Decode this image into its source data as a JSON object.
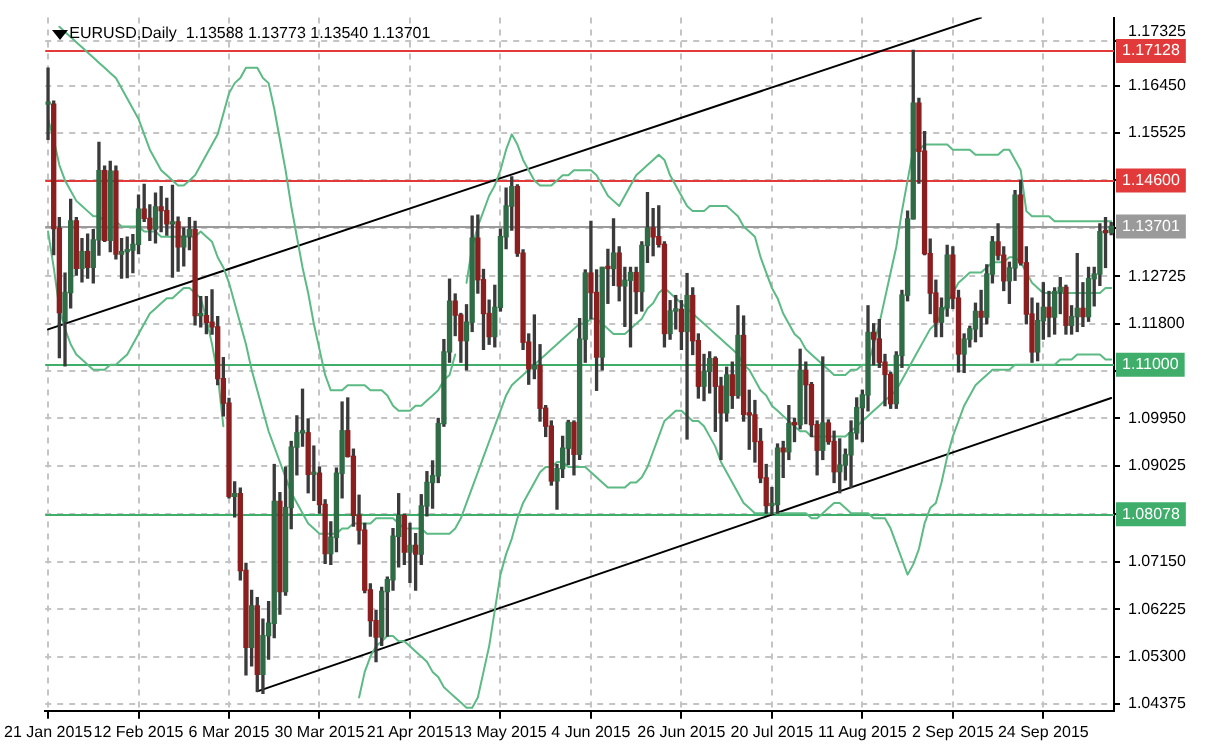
{
  "chart_data": {
    "type": "candlestick",
    "title": "EURUSD,Daily  1.13588 1.13773 1.13540 1.13701",
    "categories": [
      "21 Jan 2015",
      null,
      null,
      null,
      null,
      null,
      null,
      null,
      null,
      null,
      null,
      null,
      null,
      null,
      null,
      null,
      "12 Feb 2015",
      null,
      null,
      null,
      null,
      null,
      null,
      null,
      null,
      null,
      null,
      null,
      null,
      null,
      null,
      null,
      "6 Mar 2015",
      null,
      null,
      null,
      null,
      null,
      null,
      null,
      null,
      null,
      null,
      null,
      null,
      null,
      null,
      null,
      "30 Mar 2015",
      null,
      null,
      null,
      null,
      null,
      null,
      null,
      null,
      null,
      null,
      null,
      null,
      null,
      null,
      null,
      "21 Apr 2015",
      null,
      null,
      null,
      null,
      null,
      null,
      null,
      null,
      null,
      null,
      null,
      null,
      null,
      null,
      null,
      "13 May 2015",
      null,
      null,
      null,
      null,
      null,
      null,
      null,
      null,
      null,
      null,
      null,
      null,
      null,
      null,
      null,
      "4 Jun 2015",
      null,
      null,
      null,
      null,
      null,
      null,
      null,
      null,
      null,
      null,
      null,
      null,
      null,
      null,
      null,
      "26 Jun 2015",
      null,
      null,
      null,
      null,
      null,
      null,
      null,
      null,
      null,
      null,
      null,
      null,
      null,
      null,
      null,
      "20 Jul 2015",
      null,
      null,
      null,
      null,
      null,
      null,
      null,
      null,
      null,
      null,
      null,
      null,
      null,
      null,
      null,
      "11 Aug 2015",
      null,
      null,
      null,
      null,
      null,
      null,
      null,
      null,
      null,
      null,
      null,
      null,
      null,
      null,
      null,
      "2 Sep 2015",
      null,
      null,
      null,
      null,
      null,
      null,
      null,
      null,
      null,
      null,
      null,
      null,
      null,
      null,
      null,
      "24 Sep 2015",
      null,
      null,
      null,
      null,
      null,
      null,
      null,
      null,
      null,
      null,
      null,
      null
    ],
    "ohlc": [
      [
        1.1609,
        1.1679,
        1.154,
        1.1609
      ],
      [
        1.1609,
        1.1615,
        1.1315,
        1.1366
      ],
      [
        1.1366,
        1.1387,
        1.1114,
        1.1202
      ],
      [
        1.1185,
        1.1279,
        1.1098,
        1.1241
      ],
      [
        1.1241,
        1.1423,
        1.1211,
        1.1381
      ],
      [
        1.1381,
        1.1387,
        1.1275,
        1.1288
      ],
      [
        1.1288,
        1.1346,
        1.1262,
        1.1321
      ],
      [
        1.1321,
        1.1355,
        1.1269,
        1.129
      ],
      [
        1.129,
        1.1364,
        1.126,
        1.1344
      ],
      [
        1.1344,
        1.1534,
        1.1314,
        1.1479
      ],
      [
        1.1479,
        1.1488,
        1.1341,
        1.1343
      ],
      [
        1.1343,
        1.1497,
        1.1321,
        1.1478
      ],
      [
        1.1478,
        1.1488,
        1.1307,
        1.1316
      ],
      [
        1.1316,
        1.1346,
        1.1269,
        1.1321
      ],
      [
        1.1321,
        1.1349,
        1.127,
        1.1324
      ],
      [
        1.1324,
        1.1354,
        1.128,
        1.1335
      ],
      [
        1.1335,
        1.1431,
        1.1317,
        1.1404
      ],
      [
        1.1404,
        1.1452,
        1.138,
        1.1386
      ],
      [
        1.1386,
        1.1412,
        1.1343,
        1.1365
      ],
      [
        1.1365,
        1.1435,
        1.1338,
        1.1408
      ],
      [
        1.1408,
        1.1448,
        1.136,
        1.1401
      ],
      [
        1.1401,
        1.1425,
        1.1353,
        1.1375
      ],
      [
        1.1375,
        1.145,
        1.1271,
        1.1379
      ],
      [
        1.1379,
        1.1388,
        1.1283,
        1.133
      ],
      [
        1.133,
        1.1367,
        1.1293,
        1.1351
      ],
      [
        1.1351,
        1.1387,
        1.1325,
        1.1364
      ],
      [
        1.1364,
        1.138,
        1.1178,
        1.1196
      ],
      [
        1.1196,
        1.1233,
        1.1174,
        1.1196
      ],
      [
        1.1196,
        1.1233,
        1.1161,
        1.1183
      ],
      [
        1.1183,
        1.1246,
        1.116,
        1.1174
      ],
      [
        1.1174,
        1.1194,
        1.1061,
        1.1073
      ],
      [
        1.1073,
        1.1114,
        1.1,
        1.1025
      ],
      [
        1.1025,
        1.1034,
        1.084,
        1.0843
      ],
      [
        1.0843,
        1.0871,
        1.0803,
        1.0848
      ],
      [
        1.0848,
        1.0859,
        1.068,
        1.0698
      ],
      [
        1.0698,
        1.0712,
        1.0494,
        1.0548
      ],
      [
        1.0548,
        1.0659,
        1.0512,
        1.0629
      ],
      [
        1.0629,
        1.0645,
        1.0462,
        1.0495
      ],
      [
        1.0495,
        1.0603,
        1.0458,
        1.0571
      ],
      [
        1.0571,
        1.0637,
        1.0525,
        1.0595
      ],
      [
        1.0595,
        1.0905,
        1.0567,
        1.0833
      ],
      [
        1.0833,
        1.085,
        1.0613,
        1.0657
      ],
      [
        1.0657,
        1.09,
        1.065,
        1.0821
      ],
      [
        1.0821,
        1.095,
        1.078,
        1.0939
      ],
      [
        1.0939,
        1.1,
        1.0885,
        1.0967
      ],
      [
        1.0967,
        1.1052,
        1.0941,
        1.0967
      ],
      [
        1.0967,
        1.0994,
        1.085,
        1.0886
      ],
      [
        1.0886,
        1.0941,
        1.0835,
        1.0888
      ],
      [
        1.0888,
        1.09,
        1.081,
        1.0827
      ],
      [
        1.0827,
        1.0836,
        1.0712,
        1.0731
      ],
      [
        1.0731,
        1.0793,
        1.071,
        1.0763
      ],
      [
        1.0763,
        1.0898,
        1.0735,
        1.0888
      ],
      [
        1.0888,
        1.1027,
        1.084,
        1.0971
      ],
      [
        1.0971,
        1.1035,
        1.092,
        1.0921
      ],
      [
        1.0921,
        1.0935,
        1.0785,
        1.0806
      ],
      [
        1.0806,
        1.0845,
        1.075,
        1.0777
      ],
      [
        1.0777,
        1.079,
        1.0655,
        1.066
      ],
      [
        1.066,
        1.0672,
        1.057,
        1.06
      ],
      [
        1.06,
        1.062,
        1.052,
        1.0568
      ],
      [
        1.0568,
        1.0665,
        1.0552,
        1.0657
      ],
      [
        1.0657,
        1.0685,
        1.057,
        1.068
      ],
      [
        1.068,
        1.078,
        1.066,
        1.0765
      ],
      [
        1.0765,
        1.0848,
        1.0705,
        1.0805
      ],
      [
        1.0805,
        1.0808,
        1.071,
        1.0734
      ],
      [
        1.0734,
        1.079,
        1.0675,
        1.0747
      ],
      [
        1.0747,
        1.077,
        1.066,
        1.073
      ],
      [
        1.073,
        1.0846,
        1.071,
        1.0824
      ],
      [
        1.0824,
        1.0891,
        1.0805,
        1.087
      ],
      [
        1.087,
        1.0912,
        1.082,
        1.0883
      ],
      [
        1.0883,
        1.0995,
        1.087,
        1.0985
      ],
      [
        1.0985,
        1.1149,
        1.098,
        1.1125
      ],
      [
        1.1125,
        1.1267,
        1.1105,
        1.1224
      ],
      [
        1.1224,
        1.1238,
        1.1157,
        1.1197
      ],
      [
        1.1197,
        1.12,
        1.1105,
        1.1147
      ],
      [
        1.1147,
        1.1217,
        1.109,
        1.1183
      ],
      [
        1.1183,
        1.139,
        1.1165,
        1.1347
      ],
      [
        1.1347,
        1.1392,
        1.124,
        1.1266
      ],
      [
        1.1266,
        1.1286,
        1.113,
        1.12
      ],
      [
        1.12,
        1.1226,
        1.114,
        1.1155
      ],
      [
        1.1155,
        1.1255,
        1.1135,
        1.1212
      ],
      [
        1.1212,
        1.1365,
        1.1205,
        1.135
      ],
      [
        1.135,
        1.1445,
        1.1327,
        1.141
      ],
      [
        1.141,
        1.1467,
        1.1363,
        1.1448
      ],
      [
        1.1448,
        1.1451,
        1.1312,
        1.1318
      ],
      [
        1.1318,
        1.1324,
        1.113,
        1.1144
      ],
      [
        1.1144,
        1.116,
        1.1062,
        1.1092
      ],
      [
        1.1092,
        1.1197,
        1.1073,
        1.1098
      ],
      [
        1.1098,
        1.1139,
        1.099,
        1.1015
      ],
      [
        1.1015,
        1.102,
        1.096,
        1.098
      ],
      [
        1.098,
        1.099,
        1.0865,
        1.0873
      ],
      [
        1.0873,
        1.0905,
        1.0818,
        1.0897
      ],
      [
        1.0897,
        1.096,
        1.088,
        1.0937
      ],
      [
        1.0937,
        1.0991,
        1.0905,
        1.0987
      ],
      [
        1.0987,
        1.099,
        1.0885,
        1.0925
      ],
      [
        1.0925,
        1.119,
        1.0915,
        1.115
      ],
      [
        1.115,
        1.1285,
        1.1105,
        1.1279
      ],
      [
        1.1279,
        1.138,
        1.119,
        1.1241
      ],
      [
        1.1241,
        1.1285,
        1.105,
        1.1115
      ],
      [
        1.1115,
        1.129,
        1.109,
        1.129
      ],
      [
        1.129,
        1.1325,
        1.122,
        1.1288
      ],
      [
        1.1288,
        1.1385,
        1.1255,
        1.1318
      ],
      [
        1.1318,
        1.133,
        1.1225,
        1.1254
      ],
      [
        1.1254,
        1.129,
        1.1175,
        1.1265
      ],
      [
        1.1265,
        1.129,
        1.1135,
        1.128
      ],
      [
        1.128,
        1.129,
        1.12,
        1.1243
      ],
      [
        1.1243,
        1.134,
        1.1205,
        1.1333
      ],
      [
        1.1333,
        1.1436,
        1.13,
        1.1367
      ],
      [
        1.1367,
        1.1405,
        1.1313,
        1.135
      ],
      [
        1.135,
        1.141,
        1.133,
        1.1335
      ],
      [
        1.1335,
        1.134,
        1.1135,
        1.1161
      ],
      [
        1.1161,
        1.1225,
        1.115,
        1.1205
      ],
      [
        1.1205,
        1.1235,
        1.117,
        1.1208
      ],
      [
        1.1208,
        1.1225,
        1.113,
        1.1165
      ],
      [
        1.1165,
        1.1278,
        1.0955,
        1.1235
      ],
      [
        1.1235,
        1.125,
        1.112,
        1.1147
      ],
      [
        1.1147,
        1.116,
        1.1035,
        1.1058
      ],
      [
        1.1058,
        1.112,
        1.103,
        1.1087
      ],
      [
        1.1087,
        1.1125,
        1.1045,
        1.1112
      ],
      [
        1.1112,
        1.1115,
        1.097,
        1.1058
      ],
      [
        1.1058,
        1.1075,
        1.0915,
        1.1006
      ],
      [
        1.1006,
        1.1095,
        1.099,
        1.108
      ],
      [
        1.108,
        1.1105,
        1.1015,
        1.104
      ],
      [
        1.104,
        1.1215,
        1.1035,
        1.1157
      ],
      [
        1.1157,
        1.1195,
        1.099,
        1.1003
      ],
      [
        1.1003,
        1.105,
        1.0935,
        1.1002
      ],
      [
        1.1002,
        1.103,
        1.091,
        1.095
      ],
      [
        1.095,
        1.0975,
        1.087,
        1.0879
      ],
      [
        1.0879,
        1.0905,
        1.081,
        1.0825
      ],
      [
        1.0825,
        1.086,
        1.0808,
        1.0827
      ],
      [
        1.0827,
        1.0945,
        1.081,
        1.0937
      ],
      [
        1.0937,
        1.095,
        1.088,
        1.093
      ],
      [
        1.093,
        1.102,
        1.0915,
        1.0985
      ],
      [
        1.0985,
        1.0995,
        1.095,
        1.0983
      ],
      [
        1.0983,
        1.113,
        1.0975,
        1.1089
      ],
      [
        1.1089,
        1.1105,
        1.0985,
        1.1061
      ],
      [
        1.1061,
        1.1065,
        1.096,
        1.0983
      ],
      [
        1.0983,
        1.099,
        1.0885,
        1.0933
      ],
      [
        1.0933,
        1.1115,
        1.0915,
        1.0986
      ],
      [
        1.0986,
        1.0992,
        1.0945,
        1.095
      ],
      [
        1.095,
        1.097,
        1.087,
        1.0891
      ],
      [
        1.0891,
        1.0955,
        1.085,
        1.0904
      ],
      [
        1.0904,
        1.0935,
        1.0875,
        1.0924
      ],
      [
        1.0924,
        1.099,
        1.086,
        1.0967
      ],
      [
        1.0967,
        1.1035,
        1.0955,
        1.1016
      ],
      [
        1.1016,
        1.105,
        1.095,
        1.1041
      ],
      [
        1.1041,
        1.1215,
        1.101,
        1.1163
      ],
      [
        1.1163,
        1.118,
        1.11,
        1.115
      ],
      [
        1.115,
        1.1188,
        1.1095,
        1.1105
      ],
      [
        1.1105,
        1.112,
        1.102,
        1.1081
      ],
      [
        1.1081,
        1.1085,
        1.1015,
        1.1024
      ],
      [
        1.1024,
        1.1125,
        1.1015,
        1.1118
      ],
      [
        1.1118,
        1.1245,
        1.1095,
        1.1236
      ],
      [
        1.1236,
        1.14,
        1.1225,
        1.1385
      ],
      [
        1.1385,
        1.1714,
        1.1385,
        1.1611
      ],
      [
        1.1611,
        1.162,
        1.1455,
        1.1517
      ],
      [
        1.1517,
        1.1555,
        1.1315,
        1.1317
      ],
      [
        1.1317,
        1.1345,
        1.12,
        1.124
      ],
      [
        1.124,
        1.1265,
        1.1155,
        1.1183
      ],
      [
        1.1183,
        1.123,
        1.1155,
        1.1211
      ],
      [
        1.1211,
        1.1333,
        1.1195,
        1.1314
      ],
      [
        1.1314,
        1.133,
        1.121,
        1.123
      ],
      [
        1.123,
        1.1245,
        1.1086,
        1.1121
      ],
      [
        1.1121,
        1.116,
        1.1085,
        1.115
      ],
      [
        1.115,
        1.1175,
        1.1135,
        1.117
      ],
      [
        1.117,
        1.122,
        1.1145,
        1.1204
      ],
      [
        1.1204,
        1.1245,
        1.1155,
        1.1193
      ],
      [
        1.1193,
        1.1295,
        1.118,
        1.1277
      ],
      [
        1.1277,
        1.135,
        1.126,
        1.134
      ],
      [
        1.134,
        1.1375,
        1.1305,
        1.1314
      ],
      [
        1.1314,
        1.133,
        1.1245,
        1.1264
      ],
      [
        1.1264,
        1.13,
        1.122,
        1.1289
      ],
      [
        1.1289,
        1.144,
        1.1265,
        1.1431
      ],
      [
        1.1431,
        1.146,
        1.1295,
        1.1299
      ],
      [
        1.1299,
        1.133,
        1.118,
        1.1199
      ],
      [
        1.1199,
        1.123,
        1.1105,
        1.1125
      ],
      [
        1.1125,
        1.122,
        1.1108,
        1.1186
      ],
      [
        1.1186,
        1.126,
        1.115,
        1.1212
      ],
      [
        1.1212,
        1.1243,
        1.1155,
        1.1193
      ],
      [
        1.1193,
        1.125,
        1.116,
        1.1243
      ],
      [
        1.1243,
        1.127,
        1.12,
        1.1251
      ],
      [
        1.1251,
        1.1255,
        1.116,
        1.1177
      ],
      [
        1.1177,
        1.1215,
        1.116,
        1.1194
      ],
      [
        1.1194,
        1.1317,
        1.1165,
        1.121
      ],
      [
        1.121,
        1.126,
        1.1175,
        1.1194
      ],
      [
        1.1194,
        1.129,
        1.1185,
        1.1268
      ],
      [
        1.1268,
        1.129,
        1.1215,
        1.1277
      ],
      [
        1.1277,
        1.1375,
        1.1255,
        1.136
      ],
      [
        1.136,
        1.1387,
        1.129,
        1.1358
      ],
      [
        1.13588,
        1.13773,
        1.1354,
        1.13701
      ]
    ],
    "series": [
      {
        "type": "line",
        "color": "#5cba84",
        "values": [
          null,
          null,
          1.176,
          1.175,
          1.174,
          1.173,
          1.172,
          1.171,
          1.17,
          1.169,
          1.168,
          1.167,
          1.166,
          1.164,
          1.162,
          1.16,
          1.158,
          1.155,
          1.152,
          1.15,
          1.148,
          1.147,
          1.146,
          1.145,
          1.145,
          1.146,
          1.147,
          1.149,
          1.151,
          1.153,
          1.155,
          1.159,
          1.163,
          1.165,
          1.166,
          1.168,
          1.168,
          1.168,
          1.166,
          1.165,
          1.16,
          1.154,
          1.148,
          1.141,
          1.135,
          1.129,
          1.124,
          1.118,
          1.113,
          1.108,
          1.105,
          1.105,
          1.105,
          1.106,
          1.106,
          1.106,
          1.106,
          1.105,
          1.105,
          1.105,
          1.104,
          1.102,
          1.101,
          1.101,
          1.101,
          1.102,
          1.102,
          1.103,
          1.104,
          1.105,
          1.107,
          1.108,
          1.112,
          null,
          1.126,
          1.133,
          1.137,
          1.14,
          1.143,
          1.145,
          1.148,
          1.152,
          1.155,
          1.153,
          1.15,
          1.148,
          1.146,
          1.145,
          1.145,
          1.145,
          1.146,
          1.147,
          1.147,
          1.148,
          1.148,
          1.148,
          1.148,
          1.147,
          1.145,
          1.143,
          1.142,
          1.141,
          1.143,
          1.145,
          1.147,
          1.148,
          1.149,
          1.15,
          1.151,
          1.15,
          1.147,
          1.145,
          1.143,
          1.141,
          1.14,
          1.14,
          1.14,
          1.141,
          1.141,
          1.141,
          1.141,
          1.14,
          1.139,
          1.137,
          1.136,
          1.135,
          1.131,
          1.128,
          1.125,
          1.123,
          1.12,
          1.118,
          1.116,
          1.115,
          1.113,
          1.112,
          1.111,
          1.11,
          1.109,
          1.108,
          1.108,
          1.108,
          1.109,
          1.109,
          1.11,
          1.11,
          1.114,
          1.118,
          1.123,
          1.128,
          1.133,
          1.14,
          1.146,
          1.152,
          1.152,
          1.153,
          1.153,
          1.153,
          1.153,
          1.153,
          1.152,
          1.152,
          1.152,
          1.152,
          1.151,
          1.151,
          1.151,
          1.151,
          1.151,
          1.152,
          1.152,
          1.15,
          1.148,
          1.14,
          1.139,
          1.139,
          1.139,
          1.139,
          1.138,
          1.138,
          1.138,
          1.138,
          1.138,
          1.138,
          1.138,
          1.138,
          1.138,
          1.138,
          1.138
        ]
      },
      {
        "type": "line",
        "color": "#5cba84",
        "values": [
          1.158,
          1.154,
          1.149,
          1.146,
          1.144,
          1.142,
          1.141,
          1.14,
          1.139,
          1.139,
          1.138,
          null,
          1.138,
          1.137,
          1.137,
          1.137,
          1.137,
          1.136,
          1.136,
          1.136,
          1.135,
          1.135,
          1.135,
          1.135,
          1.135,
          1.135,
          1.135,
          1.136,
          1.135,
          1.134,
          1.131,
          1.129,
          1.126,
          1.122,
          1.118,
          1.114,
          1.109,
          1.105,
          1.101,
          1.097,
          1.094,
          1.091,
          1.088,
          1.085,
          1.083,
          1.081,
          1.079,
          1.078,
          1.077,
          1.077,
          1.077,
          1.077,
          1.078,
          1.078,
          1.079,
          1.079,
          1.079,
          1.079,
          1.08,
          1.08,
          1.08,
          1.08,
          1.079,
          1.078,
          1.078,
          1.078,
          1.078,
          1.077,
          1.077,
          1.077,
          1.077,
          1.077,
          1.078,
          1.08,
          1.083,
          1.086,
          1.089,
          1.092,
          1.095,
          1.098,
          1.101,
          1.104,
          1.106,
          1.107,
          1.108,
          1.109,
          1.11,
          1.111,
          1.112,
          1.113,
          1.114,
          1.115,
          1.116,
          1.117,
          1.118,
          1.118,
          1.119,
          1.119,
          1.118,
          1.117,
          1.116,
          1.116,
          1.116,
          1.117,
          1.118,
          1.119,
          1.121,
          1.122,
          1.124,
          1.125,
          1.124,
          1.123,
          1.122,
          1.121,
          1.12,
          1.119,
          1.118,
          1.117,
          1.116,
          1.115,
          1.114,
          1.113,
          1.112,
          1.11,
          1.109,
          1.107,
          1.105,
          1.104,
          1.102,
          1.101,
          1.1,
          1.099,
          1.098,
          1.097,
          1.097,
          1.096,
          1.096,
          1.096,
          1.096,
          1.096,
          1.096,
          1.096,
          1.097,
          1.098,
          1.099,
          1.1,
          1.101,
          1.102,
          1.103,
          1.104,
          1.105,
          1.107,
          1.109,
          1.111,
          1.113,
          1.115,
          1.117,
          1.118,
          1.12,
          1.122,
          1.124,
          1.126,
          1.127,
          1.128,
          1.128,
          1.128,
          1.129,
          1.13,
          1.13,
          1.13,
          1.131,
          1.131,
          1.13,
          1.128,
          1.126,
          1.125,
          1.124,
          1.124,
          1.124,
          1.124,
          1.124,
          1.124,
          1.124,
          1.124,
          1.124,
          1.124,
          1.124,
          1.125,
          1.125
        ]
      },
      {
        "type": "line",
        "color": "#5cba84",
        "values": [
          1.136,
          1.129,
          1.121,
          1.117,
          1.114,
          1.112,
          1.111,
          1.11,
          1.109,
          1.109,
          1.109,
          1.11,
          1.11,
          1.111,
          1.112,
          1.114,
          1.116,
          1.118,
          1.12,
          1.121,
          1.122,
          1.123,
          1.123,
          1.124,
          1.125,
          1.125,
          1.124,
          1.123,
          1.119,
          1.114,
          1.108,
          1.098,
          null,
          null,
          null,
          null,
          null,
          null,
          null,
          null,
          null,
          null,
          null,
          null,
          null,
          null,
          null,
          null,
          null,
          null,
          null,
          null,
          null,
          null,
          null,
          1.045,
          1.05,
          1.053,
          1.055,
          1.056,
          1.057,
          1.057,
          1.056,
          1.056,
          1.055,
          1.054,
          1.053,
          1.052,
          1.05,
          1.049,
          1.047,
          1.046,
          1.045,
          1.044,
          1.043,
          1.043,
          1.045,
          1.05,
          1.055,
          1.062,
          1.069,
          1.073,
          1.076,
          1.08,
          1.083,
          1.085,
          1.087,
          1.089,
          1.09,
          1.09,
          1.091,
          1.091,
          1.09,
          1.09,
          1.09,
          1.09,
          1.089,
          1.088,
          1.087,
          1.086,
          1.086,
          1.086,
          1.086,
          1.087,
          1.087,
          1.088,
          1.09,
          1.093,
          1.096,
          1.099,
          1.1,
          1.101,
          1.101,
          1.1,
          1.099,
          1.099,
          1.098,
          1.096,
          1.094,
          1.091,
          1.089,
          1.087,
          1.085,
          1.083,
          1.082,
          1.081,
          1.081,
          1.081,
          1.081,
          1.081,
          1.081,
          1.081,
          1.081,
          1.081,
          1.081,
          1.08,
          1.08,
          1.081,
          1.082,
          1.083,
          1.083,
          1.082,
          1.081,
          1.081,
          1.081,
          1.081,
          1.08,
          1.08,
          1.08,
          1.078,
          1.075,
          1.072,
          1.069,
          1.071,
          1.074,
          1.079,
          1.082,
          1.083,
          1.087,
          1.092,
          1.096,
          1.099,
          1.102,
          1.104,
          1.106,
          1.107,
          1.108,
          1.109,
          1.109,
          1.109,
          1.109,
          1.11,
          1.11,
          1.11,
          1.11,
          1.11,
          1.11,
          1.11,
          1.11,
          1.111,
          1.111,
          1.111,
          1.112,
          1.112,
          1.112,
          1.112,
          1.112,
          1.111,
          1.111
        ]
      },
      {
        "type": "line",
        "color": "#000000",
        "values": [
          1.1169,
          null,
          null,
          null,
          null,
          null,
          null,
          null,
          null,
          null,
          null,
          null,
          null,
          null,
          null,
          null,
          null,
          null,
          null,
          null,
          null,
          null,
          null,
          null,
          null,
          null,
          null,
          null,
          null,
          null,
          null,
          null,
          null,
          null,
          null,
          null,
          null,
          null,
          null,
          null,
          null,
          null,
          null,
          null,
          null,
          null,
          null,
          null,
          null,
          null,
          null,
          null,
          null,
          null,
          null,
          null,
          null,
          null,
          null,
          null,
          null,
          null,
          null,
          null,
          null,
          null,
          null,
          null,
          null,
          null,
          null,
          null,
          null,
          null,
          null,
          null,
          null,
          null,
          null,
          null,
          null,
          null,
          null,
          null,
          null,
          null,
          null,
          null,
          null,
          null,
          null,
          null,
          null,
          null,
          null,
          null,
          null,
          null,
          null,
          null,
          null,
          null,
          null,
          null,
          null,
          null,
          null,
          null,
          null,
          null,
          null,
          null,
          null,
          null,
          null,
          null,
          null,
          null,
          null,
          null,
          null,
          null,
          null,
          null,
          null,
          null,
          null,
          null,
          null,
          null,
          null,
          null,
          null,
          null,
          null,
          null,
          null,
          null,
          null,
          null,
          null,
          null,
          null,
          null,
          null,
          null,
          null,
          null,
          null,
          null,
          null,
          null,
          null,
          null,
          null,
          null,
          null,
          null,
          null,
          null,
          null,
          null,
          null,
          null,
          null,
          1.1778,
          null,
          null,
          null,
          null,
          null,
          null,
          null,
          null,
          null,
          null,
          null,
          null,
          null,
          null,
          null,
          null,
          null,
          null,
          null,
          null,
          null,
          null,
          null
        ]
      },
      {
        "type": "line",
        "color": "#000000",
        "values": [
          null,
          null,
          null,
          null,
          null,
          null,
          null,
          null,
          null,
          null,
          null,
          null,
          null,
          null,
          null,
          null,
          null,
          null,
          null,
          null,
          null,
          null,
          null,
          null,
          null,
          null,
          null,
          null,
          null,
          null,
          null,
          null,
          null,
          null,
          null,
          null,
          null,
          1.0462,
          null,
          null,
          null,
          null,
          null,
          null,
          null,
          null,
          null,
          null,
          null,
          null,
          null,
          null,
          null,
          null,
          null,
          null,
          null,
          null,
          null,
          null,
          null,
          null,
          null,
          null,
          null,
          null,
          null,
          null,
          null,
          null,
          null,
          null,
          null,
          null,
          null,
          null,
          null,
          null,
          null,
          null,
          null,
          null,
          null,
          null,
          null,
          null,
          null,
          null,
          null,
          null,
          null,
          null,
          null,
          null,
          null,
          null,
          null,
          null,
          null,
          null,
          null,
          null,
          null,
          null,
          null,
          null,
          null,
          null,
          null,
          null,
          null,
          null,
          null,
          null,
          null,
          null,
          null,
          null,
          null,
          null,
          null,
          null,
          null,
          null,
          null,
          null,
          null,
          null,
          null,
          null,
          null,
          null,
          null,
          null,
          null,
          null,
          null,
          null,
          null,
          null,
          null,
          null,
          null,
          null,
          null,
          null,
          null,
          null,
          null,
          null,
          null,
          null,
          null,
          null,
          null,
          null,
          null,
          null,
          null,
          null,
          null,
          null,
          null,
          null,
          null,
          null,
          null,
          null,
          null,
          null,
          null,
          null,
          null,
          null,
          null,
          null,
          null,
          null,
          null,
          null,
          null,
          null,
          null,
          null,
          null,
          null,
          null,
          null,
          1.1035
        ]
      }
    ],
    "ylim": [
      1.0424,
      1.1778
    ],
    "yticks": [
      1.17325,
      {
        "value": 1.1645,
        "label": "1.16450"
      },
      1.15525,
      {
        "value": 1.146,
        "label": null
      },
      {
        "value": 1.1368,
        "label": null
      },
      1.12725,
      {
        "value": 1.118,
        "label": "1.11800"
      },
      {
        "value": 1.1088,
        "label": null
      },
      {
        "value": 1.0995,
        "label": "1.09950"
      },
      1.09025,
      {
        "value": 1.0809,
        "label": null
      },
      {
        "value": 1.0715,
        "label": "1.07150"
      },
      1.06225,
      {
        "value": 1.053,
        "label": "1.05300"
      },
      1.04375
    ],
    "grid": true,
    "marker": "none",
    "ref_lines": [
      {
        "axis": "y",
        "value": 1.17128,
        "label": "1.17128",
        "color": "#e23a3a"
      },
      {
        "axis": "y",
        "value": 1.146,
        "label": "1.14600",
        "color": "#e23a3a"
      },
      {
        "axis": "y",
        "value": 1.13701,
        "label": "1.13701",
        "color": "#9a9a9a"
      },
      {
        "axis": "y",
        "value": 1.11,
        "label": "1.11000",
        "color": "#3fae6a"
      },
      {
        "axis": "y",
        "value": 1.08078,
        "label": "1.08078",
        "color": "#3fae6a"
      }
    ]
  }
}
